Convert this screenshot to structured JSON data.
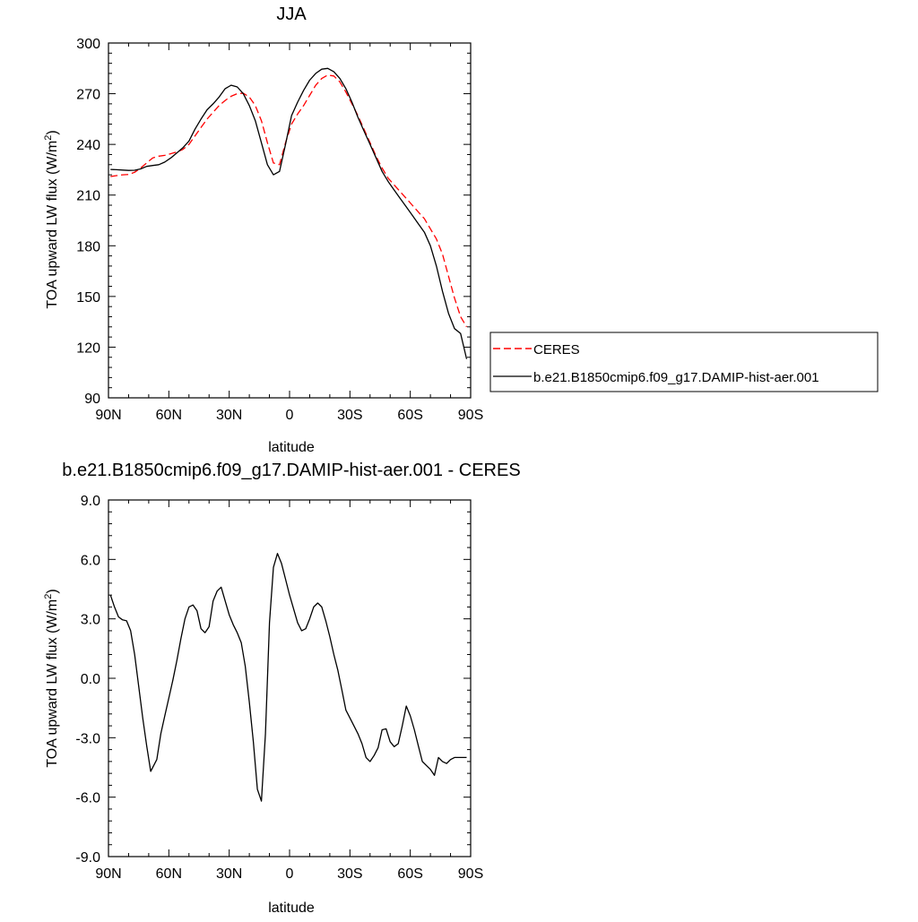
{
  "chart_data": [
    {
      "type": "line",
      "title": "JJA",
      "xlabel": "latitude",
      "ylabel": "TOA upward LW flux (W/m",
      "ylabel_sup": "2",
      "ylabel_tail": ")",
      "xlim": [
        90,
        -90
      ],
      "ylim": [
        90,
        300
      ],
      "x_ticks": [
        90,
        60,
        30,
        0,
        -30,
        -60,
        -90
      ],
      "x_tick_labels": [
        "90N",
        "60N",
        "30N",
        "0",
        "30S",
        "60S",
        "90S"
      ],
      "y_ticks": [
        90,
        120,
        150,
        180,
        210,
        240,
        270,
        300
      ],
      "y_tick_labels": [
        "90",
        "120",
        "150",
        "180",
        "210",
        "240",
        "270",
        "300"
      ],
      "grid": false,
      "legend": "right-outside",
      "series": [
        {
          "name": "CERES",
          "color": "#ff0000",
          "dashed": true,
          "x": [
            89,
            86,
            83,
            80,
            77,
            74,
            71,
            68,
            65,
            62,
            59,
            56,
            53,
            50,
            47,
            44,
            41,
            38,
            35,
            32,
            29,
            26,
            23,
            20,
            17,
            14,
            11,
            8,
            5,
            2,
            -1,
            -4,
            -7,
            -10,
            -13,
            -16,
            -19,
            -22,
            -25,
            -28,
            -31,
            -34,
            -37,
            -40,
            -43,
            -46,
            -49,
            -52,
            -55,
            -58,
            -61,
            -64,
            -67,
            -70,
            -73,
            -76,
            -79,
            -82,
            -85,
            -88
          ],
          "values": [
            221,
            221.5,
            222,
            222.2,
            223.5,
            226,
            229,
            232,
            233,
            233.5,
            234.5,
            235.5,
            237,
            240,
            245,
            250,
            255,
            259,
            263,
            266,
            268.5,
            270,
            270.3,
            268,
            263,
            254,
            241,
            229,
            228,
            241,
            252,
            258,
            263,
            269,
            275,
            279,
            281,
            280.5,
            277,
            271,
            264,
            257,
            249,
            241,
            233,
            226,
            220,
            216,
            212,
            208,
            204,
            200,
            196,
            190,
            184,
            175,
            162,
            149,
            138,
            132
          ]
        },
        {
          "name": "b.e21.B1850cmip6.f09_g17.DAMIP-hist-aer.001",
          "color": "#000000",
          "dashed": false,
          "x": [
            89,
            86,
            83,
            80,
            77,
            74,
            71,
            68,
            65,
            62,
            59,
            56,
            53,
            50,
            47,
            44,
            41,
            38,
            35,
            32,
            29,
            26,
            23,
            20,
            17,
            14,
            11,
            8,
            5,
            2,
            -1,
            -4,
            -7,
            -10,
            -13,
            -16,
            -19,
            -22,
            -25,
            -28,
            -31,
            -34,
            -37,
            -40,
            -43,
            -46,
            -49,
            -52,
            -55,
            -58,
            -61,
            -64,
            -67,
            -70,
            -73,
            -76,
            -79,
            -82,
            -85,
            -88
          ],
          "values": [
            225.2,
            225,
            224.8,
            224.6,
            224.7,
            225.5,
            227,
            227.5,
            228,
            229.5,
            232,
            235,
            238,
            242,
            249,
            255,
            260.5,
            264,
            268,
            273,
            275,
            274,
            270,
            263,
            254,
            241,
            228,
            222,
            224,
            240,
            257,
            265,
            272,
            278,
            282,
            284.5,
            285,
            283,
            279,
            273,
            265,
            256,
            248,
            240,
            232,
            224,
            218,
            213,
            208,
            203,
            198,
            193,
            188,
            180,
            168,
            153,
            140,
            131,
            128,
            113
          ]
        }
      ]
    },
    {
      "type": "line",
      "title": "b.e21.B1850cmip6.f09_g17.DAMIP-hist-aer.001 - CERES",
      "xlabel": "latitude",
      "ylabel": "TOA upward LW flux (W/m",
      "ylabel_sup": "2",
      "ylabel_tail": ")",
      "xlim": [
        90,
        -90
      ],
      "ylim": [
        -9,
        9
      ],
      "x_ticks": [
        90,
        60,
        30,
        0,
        -30,
        -60,
        -90
      ],
      "x_tick_labels": [
        "90N",
        "60N",
        "30N",
        "0",
        "30S",
        "60S",
        "90S"
      ],
      "y_ticks": [
        -9,
        -6,
        -3,
        0,
        3,
        6,
        9
      ],
      "y_tick_labels": [
        "-9.0",
        "-6.0",
        "-3.0",
        "0.0",
        "3.0",
        "6.0",
        "9.0"
      ],
      "grid": false,
      "series": [
        {
          "color": "#000000",
          "dashed": false,
          "x": [
            89,
            87,
            85,
            83,
            81,
            79,
            77,
            75,
            73,
            71,
            69,
            66,
            64,
            62,
            60,
            58,
            56,
            54,
            52,
            50,
            48,
            46,
            44,
            42,
            40,
            38,
            36,
            34,
            32,
            30,
            28,
            26,
            24,
            22,
            20,
            18,
            16,
            14,
            12,
            10,
            8,
            6,
            4,
            2,
            0,
            -2,
            -4,
            -6,
            -8,
            -10,
            -12,
            -14,
            -16,
            -18,
            -20,
            -22,
            -24,
            -26,
            -28,
            -30,
            -32,
            -34,
            -36,
            -38,
            -40,
            -42,
            -44,
            -46,
            -48,
            -50,
            -52,
            -54,
            -56,
            -58,
            -60,
            -62,
            -64,
            -66,
            -68,
            -70,
            -72,
            -74,
            -76,
            -78,
            -80,
            -82,
            -84,
            -86,
            -88
          ],
          "values": [
            4.2,
            3.6,
            3.1,
            2.95,
            2.9,
            2.4,
            1.2,
            -0.4,
            -2.0,
            -3.4,
            -4.7,
            -4.1,
            -2.8,
            -1.9,
            -1.0,
            -0.1,
            0.9,
            2.0,
            3.0,
            3.6,
            3.7,
            3.4,
            2.5,
            2.3,
            2.6,
            3.9,
            4.4,
            4.6,
            3.9,
            3.2,
            2.7,
            2.3,
            1.8,
            0.6,
            -1.2,
            -3.2,
            -5.6,
            -6.2,
            -2.8,
            2.8,
            5.6,
            6.3,
            5.8,
            5.0,
            4.2,
            3.5,
            2.8,
            2.4,
            2.5,
            3.0,
            3.6,
            3.8,
            3.6,
            2.9,
            2.1,
            1.2,
            0.4,
            -0.6,
            -1.6,
            -2.0,
            -2.4,
            -2.8,
            -3.3,
            -4.0,
            -4.2,
            -3.9,
            -3.5,
            -2.6,
            -2.55,
            -3.2,
            -3.45,
            -3.3,
            -2.4,
            -1.4,
            -1.9,
            -2.6,
            -3.4,
            -4.2,
            -4.4,
            -4.6,
            -4.9,
            -4.0,
            -4.2,
            -4.3,
            -4.1,
            -4.0,
            -4.0,
            -4.0,
            -4.0
          ]
        }
      ]
    }
  ]
}
